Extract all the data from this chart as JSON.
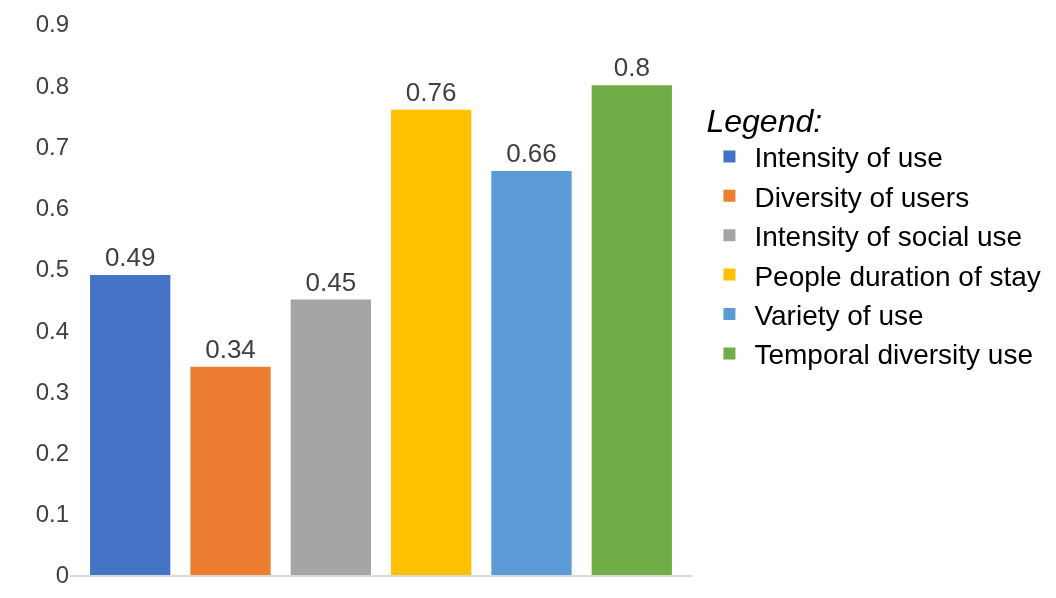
{
  "chart_data": {
    "type": "bar",
    "categories": [
      null,
      null,
      null,
      null,
      null,
      null
    ],
    "series": [
      {
        "name": "Intensity of use",
        "color": "#4472c4",
        "values": [
          0.49,
          null,
          null,
          null,
          null,
          null
        ]
      },
      {
        "name": "Diversity of users",
        "color": "#ed7d31",
        "values": [
          null,
          0.34,
          null,
          null,
          null,
          null
        ]
      },
      {
        "name": "Intensity of social use",
        "color": "#a5a5a5",
        "values": [
          null,
          null,
          0.45,
          null,
          null,
          null
        ]
      },
      {
        "name": "People duration of stay",
        "color": "#ffc000",
        "values": [
          null,
          null,
          null,
          0.76,
          null,
          null
        ]
      },
      {
        "name": "Variety of use",
        "color": "#5b9bd5",
        "values": [
          null,
          null,
          null,
          null,
          0.66,
          null
        ]
      },
      {
        "name": "Temporal diversity use",
        "color": "#70ad47",
        "values": [
          null,
          null,
          null,
          null,
          null,
          0.8
        ]
      }
    ],
    "legend_title": "Legend:",
    "legend": "right",
    "data_labels": true,
    "grid": false,
    "ylim": [
      0,
      0.9
    ],
    "yticks": [
      0,
      0.1,
      0.2,
      0.3,
      0.4,
      0.5,
      0.6,
      0.7,
      0.8,
      0.9
    ]
  }
}
